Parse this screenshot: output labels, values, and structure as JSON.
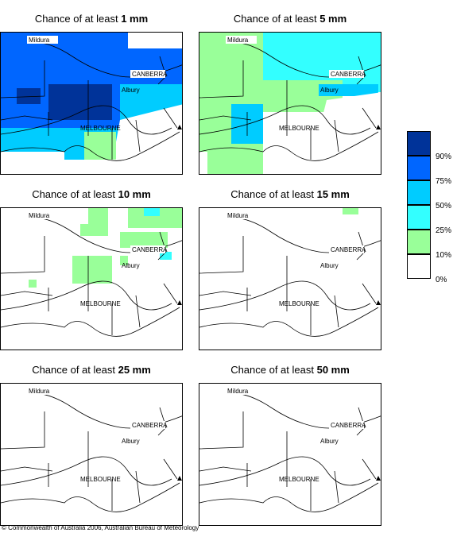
{
  "panels": [
    {
      "title_prefix": "Chance of at least ",
      "amount": "1 mm"
    },
    {
      "title_prefix": "Chance of at least ",
      "amount": "5 mm"
    },
    {
      "title_prefix": "Chance of at least ",
      "amount": "10 mm"
    },
    {
      "title_prefix": "Chance of at least ",
      "amount": "15 mm"
    },
    {
      "title_prefix": "Chance of at least ",
      "amount": "25 mm"
    },
    {
      "title_prefix": "Chance of at least ",
      "amount": "50 mm"
    }
  ],
  "places": {
    "mildura": "Mildura",
    "canberra": "CANBERRA",
    "albury": "Albury",
    "melbourne": "MELBOURNE"
  },
  "legend": {
    "labels": [
      "90%",
      "75%",
      "50%",
      "25%",
      "10%",
      "0%"
    ],
    "colors": [
      "#003399",
      "#0066ff",
      "#00ccff",
      "#33ffff",
      "#99ff99",
      "#ffffff"
    ]
  },
  "copyright": "© Commonwealth of Australia 2006, Australian Bureau of Meteorology"
}
